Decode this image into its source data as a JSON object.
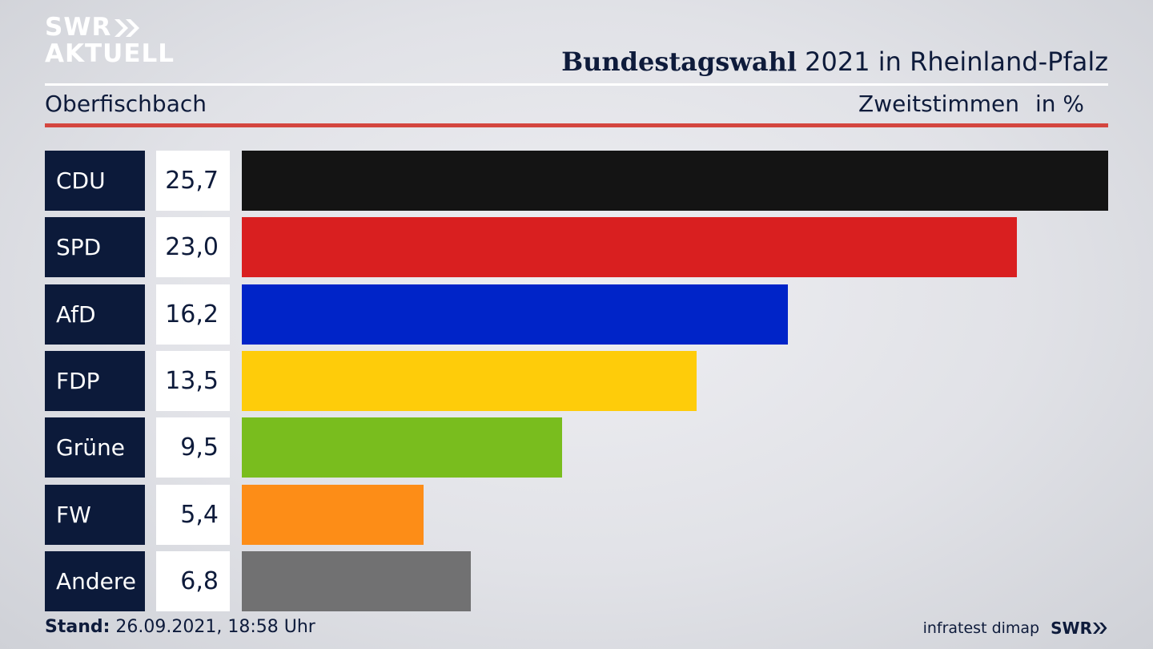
{
  "brand": {
    "line1": "SWR",
    "line2": "AKTUELL"
  },
  "header": {
    "title_bold": "Bundestagswahl",
    "title_rest": " 2021 in Rheinland-Pfalz",
    "location": "Oberfischbach",
    "measure": "Zweitstimmen",
    "unit": "in %"
  },
  "chart_data": {
    "type": "bar",
    "orientation": "horizontal",
    "categories": [
      "CDU",
      "SPD",
      "AfD",
      "FDP",
      "Grüne",
      "FW",
      "Andere"
    ],
    "values": [
      25.7,
      23.0,
      16.2,
      13.5,
      9.5,
      5.4,
      6.8
    ],
    "labels": [
      "25,7",
      "23,0",
      "16,2",
      "13,5",
      "9,5",
      "5,4",
      "6,8"
    ],
    "colors": [
      "#141414",
      "#d91f20",
      "#0024c8",
      "#fecc0a",
      "#79bd1e",
      "#fd8d17",
      "#717172"
    ],
    "grid": false
  },
  "footer": {
    "stand_label": "Stand:",
    "stand_value": " 26.09.2021, 18:58 Uhr"
  },
  "source": {
    "pollster": "infratest dimap",
    "brand": "SWR"
  }
}
